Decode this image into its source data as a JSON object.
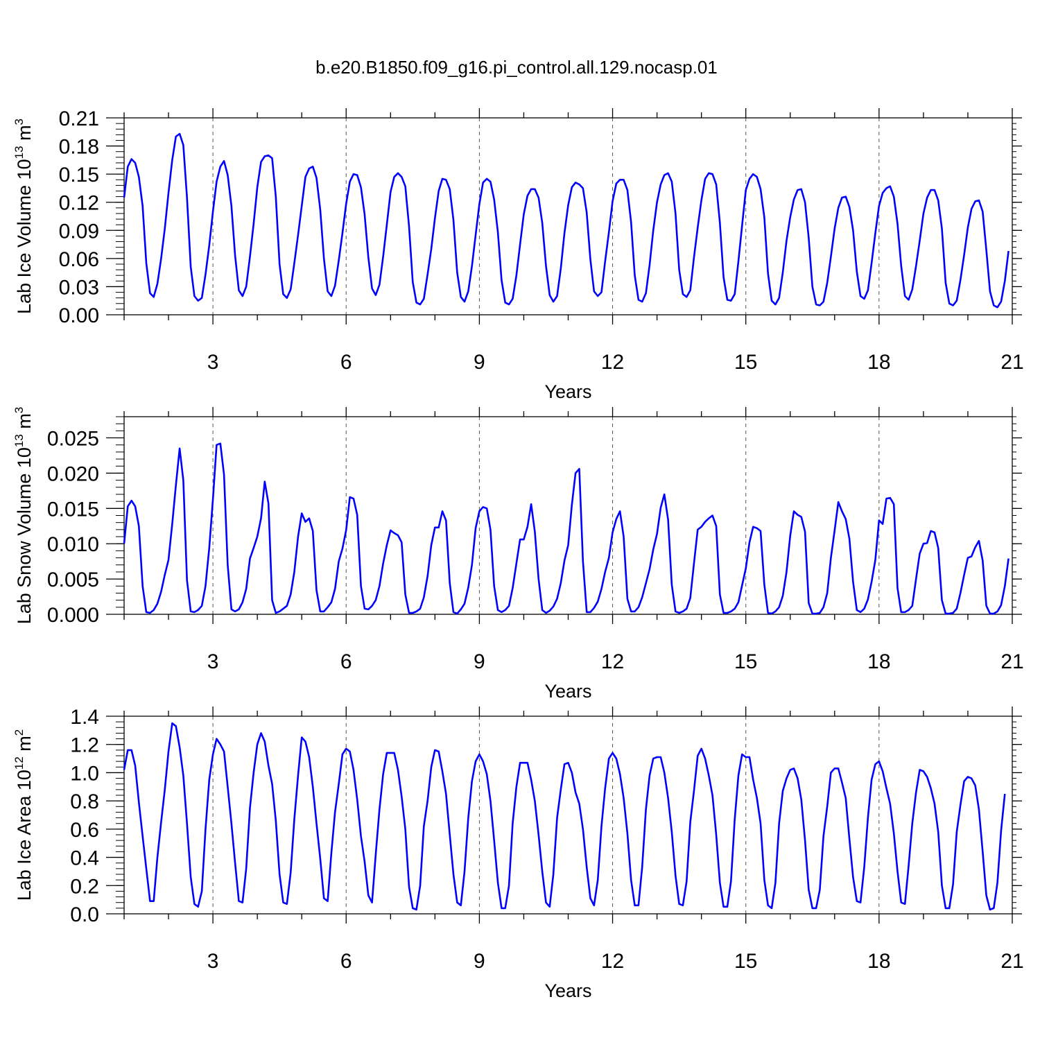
{
  "title": "b.e20.B1850.f09_g16.pi_control.all.129.nocasp.01",
  "colors": {
    "series": "#0000ff",
    "axis": "#000000",
    "grid": "#555555",
    "background": "#ffffff"
  },
  "chart_data": [
    {
      "type": "line",
      "ylabel_prefix": "Lab Ice Volume 10",
      "ylabel_exp": "13",
      "ylabel_unit": " m",
      "ylabel_unit_exp": "3",
      "xlabel": "Years",
      "xlim": [
        1,
        21
      ],
      "ylim": [
        0,
        0.21
      ],
      "xticks": [
        3,
        6,
        9,
        12,
        15,
        18,
        21
      ],
      "xtick_labels": [
        "3",
        "6",
        "9",
        "12",
        "15",
        "18",
        "21"
      ],
      "yticks": [
        0,
        0.03,
        0.06,
        0.09,
        0.12,
        0.15,
        0.18,
        0.21
      ],
      "ytick_labels": [
        "0.00",
        "0.03",
        "0.06",
        "0.09",
        "0.12",
        "0.15",
        "0.18",
        "0.21"
      ],
      "grid": "vertical dashed at major x ticks",
      "start_year": 1,
      "step": 0.08333,
      "series": [
        {
          "values": [
            0.125,
            0.158,
            0.166,
            0.162,
            0.147,
            0.116,
            0.055,
            0.023,
            0.019,
            0.033,
            0.06,
            0.092,
            0.13,
            0.165,
            0.19,
            0.193,
            0.181,
            0.125,
            0.051,
            0.02,
            0.015,
            0.018,
            0.043,
            0.074,
            0.11,
            0.142,
            0.158,
            0.164,
            0.149,
            0.116,
            0.063,
            0.026,
            0.02,
            0.03,
            0.062,
            0.097,
            0.136,
            0.163,
            0.169,
            0.17,
            0.167,
            0.126,
            0.054,
            0.022,
            0.018,
            0.027,
            0.055,
            0.085,
            0.116,
            0.147,
            0.156,
            0.158,
            0.146,
            0.112,
            0.06,
            0.025,
            0.02,
            0.031,
            0.058,
            0.087,
            0.118,
            0.142,
            0.15,
            0.149,
            0.136,
            0.107,
            0.061,
            0.028,
            0.021,
            0.032,
            0.062,
            0.096,
            0.131,
            0.147,
            0.151,
            0.147,
            0.137,
            0.094,
            0.035,
            0.013,
            0.011,
            0.017,
            0.043,
            0.07,
            0.103,
            0.132,
            0.145,
            0.144,
            0.134,
            0.101,
            0.045,
            0.019,
            0.014,
            0.025,
            0.052,
            0.085,
            0.118,
            0.141,
            0.145,
            0.142,
            0.123,
            0.088,
            0.037,
            0.013,
            0.011,
            0.017,
            0.042,
            0.075,
            0.107,
            0.127,
            0.134,
            0.134,
            0.125,
            0.098,
            0.052,
            0.021,
            0.014,
            0.02,
            0.049,
            0.087,
            0.117,
            0.136,
            0.141,
            0.139,
            0.135,
            0.109,
            0.059,
            0.025,
            0.02,
            0.024,
            0.057,
            0.088,
            0.121,
            0.14,
            0.144,
            0.144,
            0.133,
            0.099,
            0.042,
            0.016,
            0.014,
            0.023,
            0.053,
            0.09,
            0.12,
            0.139,
            0.149,
            0.151,
            0.142,
            0.108,
            0.048,
            0.022,
            0.019,
            0.026,
            0.061,
            0.093,
            0.122,
            0.145,
            0.151,
            0.15,
            0.139,
            0.098,
            0.04,
            0.016,
            0.015,
            0.022,
            0.057,
            0.095,
            0.133,
            0.145,
            0.15,
            0.147,
            0.134,
            0.104,
            0.044,
            0.015,
            0.011,
            0.018,
            0.045,
            0.079,
            0.104,
            0.123,
            0.133,
            0.134,
            0.12,
            0.082,
            0.03,
            0.011,
            0.01,
            0.014,
            0.034,
            0.062,
            0.092,
            0.114,
            0.125,
            0.126,
            0.115,
            0.09,
            0.046,
            0.02,
            0.017,
            0.026,
            0.055,
            0.087,
            0.116,
            0.13,
            0.135,
            0.137,
            0.126,
            0.097,
            0.052,
            0.02,
            0.016,
            0.027,
            0.052,
            0.079,
            0.108,
            0.125,
            0.133,
            0.133,
            0.122,
            0.092,
            0.034,
            0.012,
            0.01,
            0.015,
            0.037,
            0.064,
            0.093,
            0.113,
            0.121,
            0.122,
            0.11,
            0.069,
            0.025,
            0.01,
            0.008,
            0.014,
            0.036,
            0.068
          ]
        }
      ]
    },
    {
      "type": "line",
      "ylabel_prefix": "Lab Snow Volume 10",
      "ylabel_exp": "13",
      "ylabel_unit": " m",
      "ylabel_unit_exp": "3",
      "xlabel": "Years",
      "xlim": [
        1,
        21
      ],
      "ylim": [
        0,
        0.028
      ],
      "xticks": [
        3,
        6,
        9,
        12,
        15,
        18,
        21
      ],
      "xtick_labels": [
        "3",
        "6",
        "9",
        "12",
        "15",
        "18",
        "21"
      ],
      "yticks": [
        0,
        0.005,
        0.01,
        0.015,
        0.02,
        0.025
      ],
      "ytick_labels": [
        "0.000",
        "0.005",
        "0.010",
        "0.015",
        "0.020",
        "0.025"
      ],
      "grid": "vertical dashed at major x ticks",
      "start_year": 1,
      "step": 0.08333,
      "series": [
        {
          "values": [
            0.01,
            0.0153,
            0.0161,
            0.0153,
            0.0125,
            0.004,
            0.0003,
            0.0002,
            0.0006,
            0.0015,
            0.0032,
            0.0056,
            0.0077,
            0.0128,
            0.0183,
            0.0235,
            0.019,
            0.0048,
            0.0004,
            0.0003,
            0.0006,
            0.0012,
            0.004,
            0.0094,
            0.0163,
            0.024,
            0.0242,
            0.0198,
            0.007,
            0.0007,
            0.0004,
            0.0007,
            0.0017,
            0.0036,
            0.0079,
            0.0094,
            0.011,
            0.0136,
            0.0188,
            0.0157,
            0.002,
            0.0002,
            0.0004,
            0.0008,
            0.0012,
            0.0028,
            0.006,
            0.011,
            0.0143,
            0.0131,
            0.0136,
            0.0118,
            0.0034,
            0.0004,
            0.0004,
            0.001,
            0.0017,
            0.0036,
            0.0075,
            0.0093,
            0.0119,
            0.0166,
            0.0164,
            0.0141,
            0.004,
            0.0008,
            0.0007,
            0.0012,
            0.002,
            0.004,
            0.0072,
            0.0098,
            0.0119,
            0.0115,
            0.0112,
            0.0102,
            0.0028,
            0.0002,
            0.0002,
            0.0004,
            0.0008,
            0.0024,
            0.0054,
            0.0098,
            0.0123,
            0.0123,
            0.0146,
            0.0133,
            0.0044,
            0.0003,
            0.0001,
            0.0007,
            0.0015,
            0.0038,
            0.007,
            0.0122,
            0.0146,
            0.0152,
            0.015,
            0.012,
            0.004,
            0.0006,
            0.0003,
            0.0006,
            0.0012,
            0.0037,
            0.0072,
            0.0106,
            0.0106,
            0.0124,
            0.0156,
            0.0117,
            0.005,
            0.0006,
            0.0002,
            0.0005,
            0.0011,
            0.0022,
            0.0044,
            0.0076,
            0.0098,
            0.0155,
            0.02,
            0.0206,
            0.0075,
            0.0003,
            0.0003,
            0.0009,
            0.0018,
            0.0036,
            0.006,
            0.008,
            0.0116,
            0.0135,
            0.0146,
            0.011,
            0.0022,
            0.0004,
            0.0004,
            0.001,
            0.0024,
            0.0044,
            0.0064,
            0.0092,
            0.0114,
            0.0151,
            0.017,
            0.0134,
            0.0042,
            0.0004,
            0.0002,
            0.0004,
            0.0008,
            0.0023,
            0.0072,
            0.012,
            0.0124,
            0.0131,
            0.0136,
            0.014,
            0.0125,
            0.0028,
            0.0002,
            0.0002,
            0.0004,
            0.0008,
            0.0017,
            0.0041,
            0.0065,
            0.0102,
            0.0124,
            0.0122,
            0.0118,
            0.0042,
            0.0002,
            0.0001,
            0.0004,
            0.001,
            0.0026,
            0.006,
            0.0111,
            0.0146,
            0.0141,
            0.0138,
            0.0117,
            0.0016,
            0.0001,
            0.0001,
            0.0002,
            0.001,
            0.003,
            0.008,
            0.0119,
            0.0159,
            0.0146,
            0.0135,
            0.0107,
            0.0046,
            0.0006,
            0.0003,
            0.0008,
            0.0021,
            0.0046,
            0.0077,
            0.0133,
            0.0128,
            0.0164,
            0.0165,
            0.0156,
            0.0037,
            0.0003,
            0.0003,
            0.0006,
            0.0012,
            0.005,
            0.0086,
            0.01,
            0.0101,
            0.0118,
            0.0116,
            0.0094,
            0.002,
            0.0001,
            0.0001,
            0.0002,
            0.0008,
            0.003,
            0.0056,
            0.008,
            0.0082,
            0.0095,
            0.0104,
            0.0076,
            0.0012,
            0.0001,
            0.0001,
            0.0004,
            0.0013,
            0.004,
            0.0079
          ]
        }
      ]
    },
    {
      "type": "line",
      "ylabel_prefix": "Lab Ice Area 10",
      "ylabel_exp": "12",
      "ylabel_unit": " m",
      "ylabel_unit_exp": "2",
      "xlabel": "Years",
      "xlim": [
        1,
        21
      ],
      "ylim": [
        0,
        1.4
      ],
      "xticks": [
        3,
        6,
        9,
        12,
        15,
        18,
        21
      ],
      "xtick_labels": [
        "3",
        "6",
        "9",
        "12",
        "15",
        "18",
        "21"
      ],
      "yticks": [
        0,
        0.2,
        0.4,
        0.6,
        0.8,
        1.0,
        1.2,
        1.4
      ],
      "ytick_labels": [
        "0.0",
        "0.2",
        "0.4",
        "0.6",
        "0.8",
        "1.0",
        "1.2",
        "1.4"
      ],
      "grid": "vertical dashed at major x ticks",
      "start_year": 1,
      "step": 0.08333,
      "series": [
        {
          "values": [
            1.02,
            1.16,
            1.16,
            1.05,
            0.79,
            0.55,
            0.32,
            0.09,
            0.09,
            0.4,
            0.65,
            0.88,
            1.15,
            1.35,
            1.33,
            1.18,
            0.98,
            0.64,
            0.26,
            0.07,
            0.05,
            0.16,
            0.6,
            0.95,
            1.13,
            1.24,
            1.2,
            1.15,
            0.9,
            0.64,
            0.36,
            0.09,
            0.08,
            0.32,
            0.75,
            1.0,
            1.2,
            1.28,
            1.22,
            1.05,
            0.92,
            0.66,
            0.28,
            0.08,
            0.07,
            0.29,
            0.67,
            0.98,
            1.25,
            1.22,
            1.11,
            0.9,
            0.64,
            0.39,
            0.11,
            0.09,
            0.43,
            0.72,
            0.92,
            1.13,
            1.17,
            1.15,
            1.02,
            0.81,
            0.55,
            0.37,
            0.13,
            0.08,
            0.42,
            0.74,
            0.99,
            1.14,
            1.14,
            1.14,
            1.02,
            0.83,
            0.6,
            0.19,
            0.04,
            0.03,
            0.2,
            0.62,
            0.8,
            1.04,
            1.16,
            1.15,
            1.01,
            0.85,
            0.56,
            0.28,
            0.08,
            0.06,
            0.3,
            0.68,
            0.94,
            1.08,
            1.13,
            1.08,
            0.99,
            0.8,
            0.52,
            0.22,
            0.04,
            0.04,
            0.2,
            0.64,
            0.9,
            1.07,
            1.07,
            1.07,
            0.95,
            0.8,
            0.56,
            0.3,
            0.08,
            0.05,
            0.28,
            0.68,
            0.88,
            1.06,
            1.07,
            1.0,
            0.86,
            0.78,
            0.6,
            0.33,
            0.11,
            0.06,
            0.24,
            0.62,
            0.89,
            1.1,
            1.14,
            1.1,
            0.99,
            0.82,
            0.57,
            0.24,
            0.06,
            0.06,
            0.33,
            0.74,
            0.98,
            1.1,
            1.11,
            1.11,
            1.0,
            0.82,
            0.58,
            0.27,
            0.07,
            0.06,
            0.23,
            0.65,
            0.87,
            1.12,
            1.17,
            1.1,
            0.98,
            0.84,
            0.56,
            0.22,
            0.05,
            0.05,
            0.23,
            0.67,
            0.98,
            1.13,
            1.11,
            1.11,
            0.95,
            0.82,
            0.64,
            0.24,
            0.06,
            0.04,
            0.22,
            0.64,
            0.87,
            0.96,
            1.02,
            1.03,
            0.96,
            0.81,
            0.52,
            0.17,
            0.04,
            0.04,
            0.17,
            0.55,
            0.76,
            1.0,
            1.03,
            1.03,
            0.93,
            0.82,
            0.53,
            0.26,
            0.09,
            0.08,
            0.33,
            0.68,
            0.95,
            1.06,
            1.08,
            1.01,
            0.89,
            0.78,
            0.57,
            0.3,
            0.08,
            0.07,
            0.34,
            0.64,
            0.86,
            1.02,
            1.01,
            0.97,
            0.89,
            0.78,
            0.58,
            0.2,
            0.04,
            0.04,
            0.21,
            0.58,
            0.77,
            0.94,
            0.97,
            0.96,
            0.91,
            0.74,
            0.44,
            0.13,
            0.03,
            0.04,
            0.22,
            0.59,
            0.85
          ]
        }
      ]
    }
  ]
}
